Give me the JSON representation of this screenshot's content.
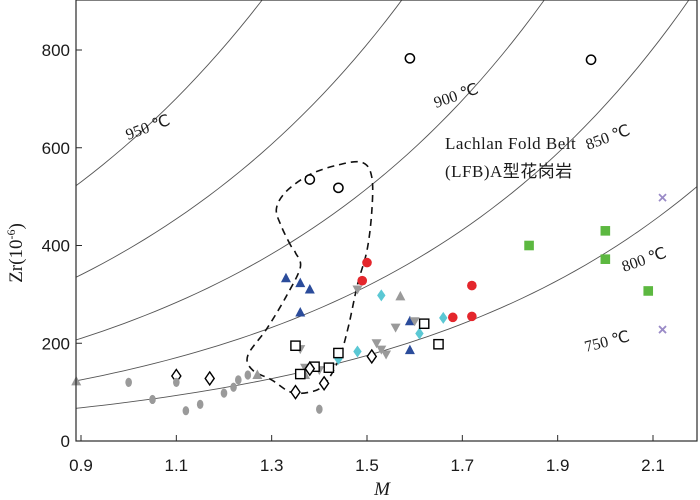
{
  "chart_data": {
    "type": "scatter",
    "xlabel": "M",
    "ylabel": "Zr(10",
    "ylabel_sup": "-6",
    "ylabel_close": ")",
    "xlim": [
      0.88,
      2.2
    ],
    "ylim": [
      0,
      900
    ],
    "xticks": [
      0.9,
      1.1,
      1.3,
      1.5,
      1.7,
      1.9,
      2.1
    ],
    "yticks": [
      0,
      200,
      400,
      600,
      800
    ],
    "isotherm_labels": [
      "950 ℃",
      "900 ℃",
      "850 ℃",
      "800 ℃",
      "750 ℃"
    ],
    "annotation_line1": "Lachlan Fold Belt",
    "annotation_line2": "(LFB)A型花岗岩",
    "isotherms": [
      {
        "label": "950 ℃",
        "y0": 530,
        "rate": 0.56
      },
      {
        "label": "900 ℃",
        "y0": 340,
        "rate": 0.58
      },
      {
        "label": "850 ℃",
        "y0": 210,
        "rate": 0.6
      },
      {
        "label": "800 ℃",
        "y0": 125,
        "rate": 0.62
      },
      {
        "label": "750 ℃",
        "y0": 68,
        "rate": 0.63
      }
    ],
    "lfb_field": [
      [
        1.34,
        400
      ],
      [
        1.32,
        440
      ],
      [
        1.31,
        475
      ],
      [
        1.33,
        510
      ],
      [
        1.38,
        545
      ],
      [
        1.44,
        565
      ],
      [
        1.49,
        570
      ],
      [
        1.51,
        540
      ],
      [
        1.51,
        470
      ],
      [
        1.5,
        390
      ],
      [
        1.48,
        320
      ],
      [
        1.46,
        230
      ],
      [
        1.44,
        165
      ],
      [
        1.41,
        115
      ],
      [
        1.38,
        100
      ],
      [
        1.34,
        100
      ],
      [
        1.3,
        125
      ],
      [
        1.26,
        145
      ],
      [
        1.25,
        175
      ],
      [
        1.29,
        230
      ],
      [
        1.33,
        295
      ],
      [
        1.36,
        355
      ],
      [
        1.35,
        385
      ]
    ],
    "series": [
      {
        "marker": "open-circle",
        "color": "#000000",
        "points": [
          [
            1.59,
            783
          ],
          [
            1.97,
            780
          ],
          [
            1.38,
            535
          ],
          [
            1.44,
            518
          ]
        ]
      },
      {
        "marker": "filled-circle",
        "color": "#e4262c",
        "points": [
          [
            1.5,
            365
          ],
          [
            1.49,
            328
          ],
          [
            1.72,
            318
          ],
          [
            1.68,
            253
          ],
          [
            1.72,
            255
          ]
        ]
      },
      {
        "marker": "filled-triangle",
        "color": "#2b4c9b",
        "points": [
          [
            1.33,
            333
          ],
          [
            1.36,
            323
          ],
          [
            1.38,
            310
          ],
          [
            1.36,
            263
          ],
          [
            1.59,
            245
          ],
          [
            1.59,
            186
          ]
        ]
      },
      {
        "marker": "down-triangle",
        "color": "#9a9a9a",
        "points": [
          [
            1.48,
            310
          ],
          [
            1.52,
            200
          ],
          [
            1.54,
            177
          ],
          [
            1.53,
            187
          ],
          [
            1.56,
            232
          ],
          [
            1.6,
            245
          ],
          [
            1.37,
            150
          ],
          [
            1.4,
            145
          ],
          [
            1.36,
            188
          ]
        ]
      },
      {
        "marker": "filled-triangle",
        "color": "#9a9a9a",
        "points": [
          [
            0.89,
            122
          ],
          [
            1.57,
            296
          ],
          [
            1.27,
            135
          ],
          [
            1.37,
            135
          ]
        ]
      },
      {
        "marker": "filled-diamond",
        "color": "#5bc8d4",
        "points": [
          [
            1.53,
            298
          ],
          [
            1.61,
            220
          ],
          [
            1.66,
            252
          ],
          [
            1.48,
            183
          ],
          [
            1.44,
            168
          ]
        ]
      },
      {
        "marker": "open-square",
        "color": "#000000",
        "points": [
          [
            1.35,
            195
          ],
          [
            1.36,
            137
          ],
          [
            1.39,
            152
          ],
          [
            1.42,
            150
          ],
          [
            1.44,
            180
          ],
          [
            1.62,
            240
          ],
          [
            1.65,
            198
          ]
        ]
      },
      {
        "marker": "open-diamond",
        "color": "#000000",
        "points": [
          [
            1.1,
            133
          ],
          [
            1.17,
            128
          ],
          [
            1.35,
            100
          ],
          [
            1.38,
            148
          ],
          [
            1.41,
            118
          ],
          [
            1.51,
            173
          ]
        ]
      },
      {
        "marker": "filled-ellipse",
        "color": "#9a9a9a",
        "points": [
          [
            1.0,
            120
          ],
          [
            1.05,
            85
          ],
          [
            1.1,
            120
          ],
          [
            1.12,
            62
          ],
          [
            1.15,
            75
          ],
          [
            1.2,
            98
          ],
          [
            1.22,
            110
          ],
          [
            1.23,
            125
          ],
          [
            1.25,
            135
          ],
          [
            1.4,
            65
          ]
        ]
      },
      {
        "marker": "filled-square",
        "color": "#5cb840",
        "points": [
          [
            1.84,
            400
          ],
          [
            2.0,
            430
          ],
          [
            2.0,
            372
          ],
          [
            2.09,
            307
          ]
        ]
      },
      {
        "marker": "cross",
        "color": "#9a8bc7",
        "points": [
          [
            2.12,
            498
          ],
          [
            2.12,
            228
          ]
        ]
      }
    ]
  }
}
